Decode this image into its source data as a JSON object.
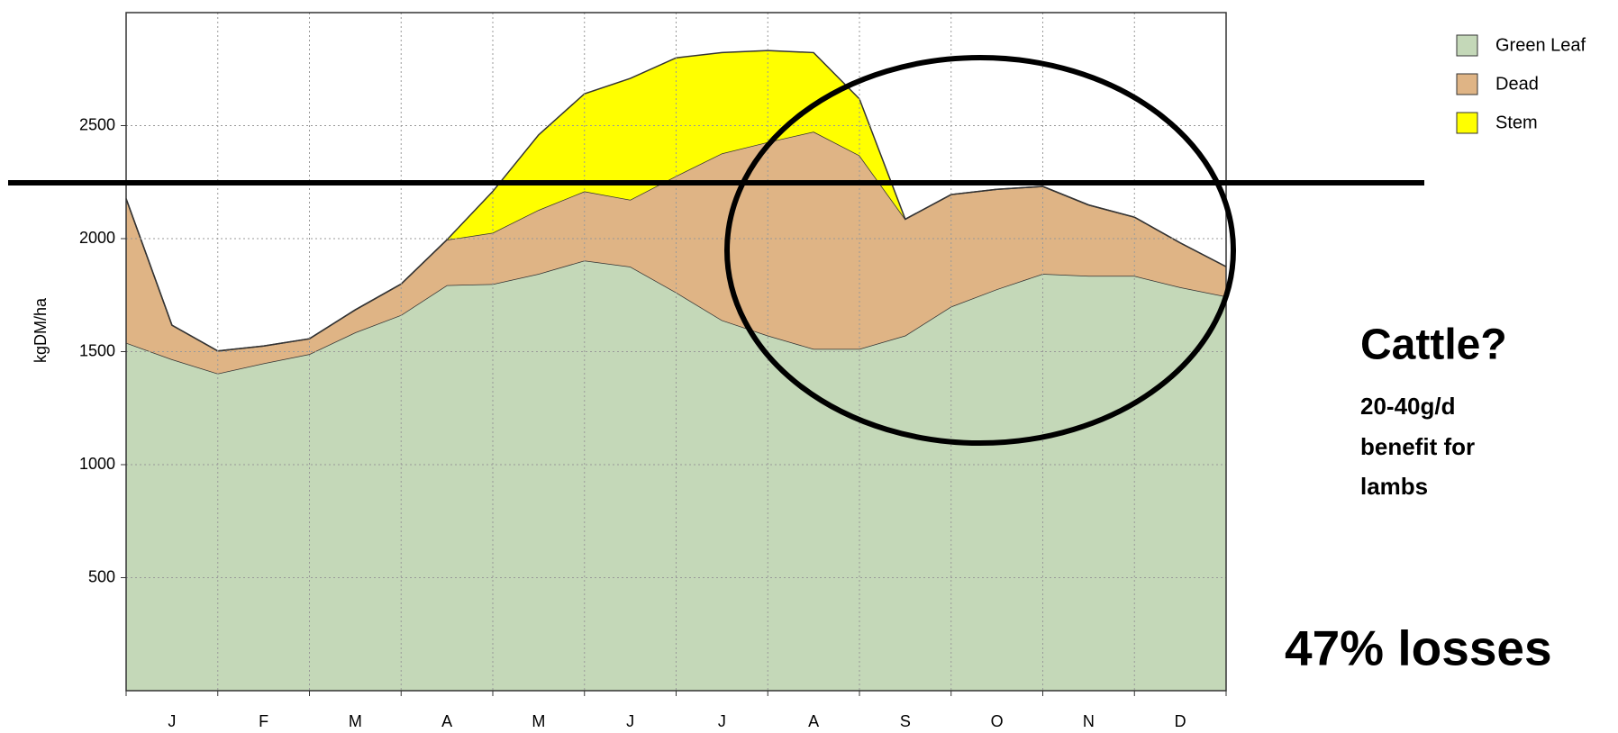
{
  "chart_data": {
    "type": "stacked-area",
    "y_label": "kgDM/ha",
    "categories": [
      null,
      "J",
      null,
      "F",
      null,
      "M",
      null,
      "A",
      null,
      "M",
      null,
      "J",
      null,
      "J",
      null,
      "A",
      null,
      "S",
      null,
      "O",
      null,
      "N",
      null,
      "D",
      null
    ],
    "series": [
      {
        "name": "Green Leaf",
        "color": "#c4d8b8",
        "values": [
          1539,
          1466,
          1403,
          1448,
          1489,
          1585,
          1662,
          1794,
          1799,
          1844,
          1903,
          1876,
          1762,
          1639,
          1571,
          1512,
          1512,
          1571,
          1699,
          1776,
          1844,
          1835,
          1835,
          1785,
          1744
        ]
      },
      {
        "name": "Dead",
        "color": "#dfb485",
        "values": [
          638,
          151,
          100,
          77,
          68,
          100,
          137,
          201,
          227,
          283,
          306,
          296,
          515,
          738,
          856,
          961,
          856,
          515,
          496,
          442,
          387,
          314,
          260,
          196,
          132
        ]
      },
      {
        "name": "Stem",
        "color": "#ffff00",
        "values": [
          0,
          0,
          0,
          0,
          0,
          0,
          0,
          0,
          183,
          332,
          432,
          537,
          523,
          446,
          405,
          350,
          250,
          0,
          0,
          0,
          0,
          0,
          0,
          0,
          0
        ]
      }
    ],
    "ylim": [
      0,
      3000
    ],
    "yticks": [
      500,
      1000,
      1500,
      2000,
      2500
    ],
    "grid": true,
    "legend": "upper right",
    "annotations": [
      "Cattle?",
      "20-40g/d",
      "benefit for",
      "lambs",
      "47% losses"
    ]
  }
}
